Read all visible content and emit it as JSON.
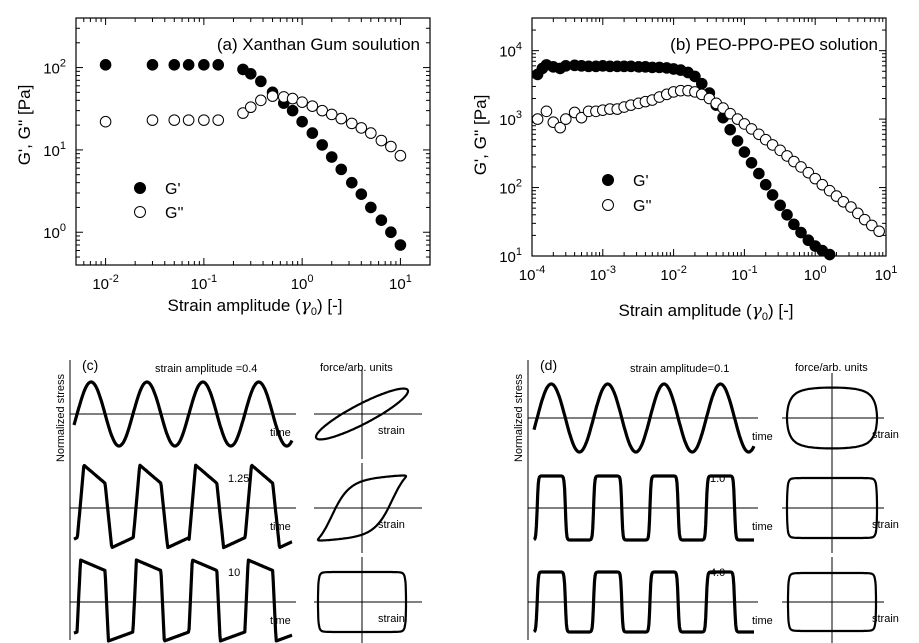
{
  "chart_data": [
    {
      "type": "scatter",
      "title": "(a) Xanthan Gum soulution",
      "xlabel_main": "Strain amplitude (",
      "xlabel_sym": "γ",
      "xlabel_sub": "0",
      "xlabel_tail": ") [-]",
      "ylabel": "G', G'' [Pa]",
      "xscale": "log",
      "yscale": "log",
      "xlim": [
        0.005,
        20
      ],
      "ylim": [
        0.4,
        400
      ],
      "xticks": [
        {
          "value": 0.01,
          "base": "10",
          "exp": "-2"
        },
        {
          "value": 0.1,
          "base": "10",
          "exp": "-1"
        },
        {
          "value": 1,
          "base": "10",
          "exp": "0"
        },
        {
          "value": 10,
          "base": "10",
          "exp": "1"
        }
      ],
      "yticks": [
        {
          "value": 1,
          "base": "10",
          "exp": "0"
        },
        {
          "value": 10,
          "base": "10",
          "exp": "1"
        },
        {
          "value": 100,
          "base": "10",
          "exp": "2"
        }
      ],
      "legend_placement": "bottom-left",
      "series": [
        {
          "name": "G'",
          "marker": "filled",
          "x": [
            0.01,
            0.03,
            0.05,
            0.07,
            0.1,
            0.14,
            0.25,
            0.3,
            0.38,
            0.5,
            0.65,
            0.8,
            1.0,
            1.27,
            1.6,
            2.0,
            2.5,
            3.2,
            4.0,
            5.0,
            6.4,
            8.0,
            10.0
          ],
          "y": [
            108,
            108,
            108,
            108,
            108,
            108,
            95,
            84,
            68,
            50,
            37,
            30,
            22,
            16,
            11.5,
            8.2,
            5.8,
            4.0,
            2.9,
            2.0,
            1.4,
            1.0,
            0.7
          ]
        },
        {
          "name": "G''",
          "marker": "open",
          "x": [
            0.01,
            0.03,
            0.05,
            0.07,
            0.1,
            0.14,
            0.25,
            0.3,
            0.38,
            0.5,
            0.65,
            0.8,
            1.0,
            1.27,
            1.6,
            2.0,
            2.5,
            3.2,
            4.0,
            5.0,
            6.4,
            8.0,
            10.0
          ],
          "y": [
            22,
            23,
            23,
            23,
            23,
            23,
            28,
            33,
            40,
            45,
            44,
            42,
            38,
            34,
            30,
            27,
            24,
            21,
            18.5,
            16,
            13,
            11,
            8.5
          ]
        }
      ]
    },
    {
      "type": "scatter",
      "title": "(b) PEO-PPO-PEO solution",
      "xlabel_main": "Strain amplitude (",
      "xlabel_sym": "γ",
      "xlabel_sub": "0",
      "xlabel_tail": ") [-]",
      "ylabel": "G', G'' [Pa]",
      "xscale": "log",
      "yscale": "log",
      "xlim": [
        0.0001,
        10
      ],
      "ylim": [
        10,
        30000
      ],
      "xticks": [
        {
          "value": 0.0001,
          "base": "10",
          "exp": "-4"
        },
        {
          "value": 0.001,
          "base": "10",
          "exp": "-3"
        },
        {
          "value": 0.01,
          "base": "10",
          "exp": "-2"
        },
        {
          "value": 0.1,
          "base": "10",
          "exp": "-1"
        },
        {
          "value": 1,
          "base": "10",
          "exp": "0"
        },
        {
          "value": 10,
          "base": "10",
          "exp": "1"
        }
      ],
      "yticks": [
        {
          "value": 10,
          "base": "10",
          "exp": "1"
        },
        {
          "value": 100,
          "base": "10",
          "exp": "2"
        },
        {
          "value": 1000,
          "base": "10",
          "exp": "3"
        },
        {
          "value": 10000,
          "base": "10",
          "exp": "4"
        }
      ],
      "legend_placement": "bottom-left",
      "series": [
        {
          "name": "G'",
          "marker": "filled",
          "x": [
            0.00012,
            0.00014,
            0.00016,
            0.0002,
            0.00025,
            0.0003,
            0.0004,
            0.0005,
            0.00063,
            0.0008,
            0.001,
            0.00126,
            0.0016,
            0.002,
            0.0025,
            0.0032,
            0.004,
            0.005,
            0.0063,
            0.008,
            0.01,
            0.0126,
            0.016,
            0.02,
            0.025,
            0.032,
            0.04,
            0.05,
            0.063,
            0.08,
            0.1,
            0.126,
            0.16,
            0.2,
            0.25,
            0.32,
            0.4,
            0.5,
            0.63,
            0.8,
            1.0,
            1.26,
            1.6
          ],
          "y": [
            4500,
            5500,
            6200,
            5800,
            5500,
            6000,
            6100,
            6000,
            5900,
            5900,
            6000,
            5900,
            5900,
            5900,
            5900,
            5800,
            5800,
            5700,
            5700,
            5600,
            5400,
            5200,
            4800,
            4200,
            3300,
            2400,
            1600,
            1050,
            700,
            480,
            330,
            230,
            160,
            110,
            78,
            55,
            40,
            29,
            22,
            17,
            14,
            12,
            10.5
          ]
        },
        {
          "name": "G''",
          "marker": "open",
          "x": [
            0.00012,
            0.00016,
            0.0002,
            0.00025,
            0.0003,
            0.0004,
            0.0005,
            0.00063,
            0.0008,
            0.001,
            0.00126,
            0.0016,
            0.002,
            0.0025,
            0.0032,
            0.004,
            0.005,
            0.0063,
            0.008,
            0.01,
            0.0126,
            0.016,
            0.02,
            0.025,
            0.032,
            0.04,
            0.05,
            0.063,
            0.08,
            0.1,
            0.126,
            0.16,
            0.2,
            0.25,
            0.32,
            0.4,
            0.5,
            0.63,
            0.8,
            1.0,
            1.26,
            1.6,
            2.0,
            2.5,
            3.2,
            4.0,
            5.0,
            6.3,
            8.0
          ],
          "y": [
            1000,
            1300,
            900,
            750,
            1000,
            1250,
            1050,
            1300,
            1300,
            1350,
            1400,
            1400,
            1500,
            1600,
            1700,
            1800,
            1900,
            2100,
            2300,
            2500,
            2600,
            2600,
            2500,
            2300,
            2000,
            1700,
            1450,
            1200,
            1000,
            850,
            720,
            600,
            500,
            420,
            350,
            290,
            240,
            200,
            165,
            135,
            110,
            90,
            75,
            62,
            52,
            42,
            34,
            28,
            23
          ]
        }
      ]
    }
  ],
  "panel_c": {
    "label": "(c)",
    "amp_title": "strain amplitude =0.4",
    "force_title": "force/arb. units",
    "ylabel": "Normalized stress",
    "rows": [
      {
        "value_label": "",
        "time_label": "time",
        "strain_label": "strain"
      },
      {
        "value_label": "1.25",
        "time_label": "time",
        "strain_label": "strain"
      },
      {
        "value_label": "10",
        "time_label": "time",
        "strain_label": "strain"
      }
    ]
  },
  "panel_d": {
    "label": "(d)",
    "amp_title": "strain amplitude=0.1",
    "force_title": "force/arb. units",
    "ylabel": "Normalized stress",
    "rows": [
      {
        "value_label": "",
        "time_label": "time",
        "strain_label": "strain"
      },
      {
        "value_label": "1.0",
        "time_label": "time",
        "strain_label": "strain"
      },
      {
        "value_label": "4.0",
        "time_label": "time",
        "strain_label": "strain"
      }
    ]
  }
}
